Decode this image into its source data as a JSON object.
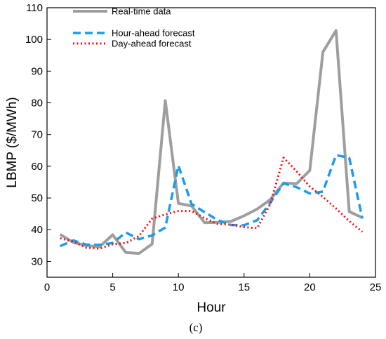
{
  "chart_data": {
    "type": "line",
    "xlabel": "Hour",
    "ylabel": "LBMP ($/MWh)",
    "xlim": [
      0,
      25
    ],
    "ylim": [
      25,
      110
    ],
    "xticks": [
      0,
      5,
      10,
      15,
      20,
      25
    ],
    "yticks": [
      30,
      40,
      50,
      60,
      70,
      80,
      90,
      100,
      110
    ],
    "caption": "(c)",
    "legend_position": "top-left",
    "grid": false,
    "x": [
      1,
      2,
      3,
      4,
      5,
      6,
      7,
      8,
      9,
      10,
      11,
      12,
      13,
      14,
      15,
      16,
      17,
      18,
      19,
      20,
      21,
      22,
      23,
      24
    ],
    "series": [
      {
        "name": "Real-time data",
        "color": "#9e9e9e",
        "style": "solid",
        "values": [
          38.5,
          36,
          35,
          34.6,
          38.4,
          32.8,
          32.5,
          35.5,
          80.7,
          48.3,
          47.5,
          42.2,
          42.3,
          42.6,
          44.4,
          46.5,
          49.5,
          54.7,
          54.5,
          58.7,
          96,
          102.8,
          45.7,
          43.8
        ]
      },
      {
        "name": "Hour-ahead forecast",
        "color": "#1f9bea",
        "style": "dashed",
        "values": [
          34.8,
          36.6,
          35.3,
          35.2,
          35.8,
          39.1,
          37,
          38.2,
          40.7,
          60.2,
          48.1,
          45.5,
          43,
          41.5,
          41.4,
          43,
          48.5,
          54.6,
          53.4,
          51.4,
          52,
          63.5,
          62.7,
          43.5
        ]
      },
      {
        "name": "Day-ahead forecast",
        "color": "#ee1111",
        "style": "dotted",
        "values": [
          37.3,
          36.2,
          34.3,
          34,
          35.4,
          35.8,
          38,
          43.5,
          44.8,
          45.9,
          45.9,
          43.6,
          41.8,
          41.6,
          40.8,
          40.5,
          48.1,
          62.7,
          58.4,
          53.6,
          50.3,
          46.7,
          42.7,
          39.3
        ]
      }
    ]
  }
}
